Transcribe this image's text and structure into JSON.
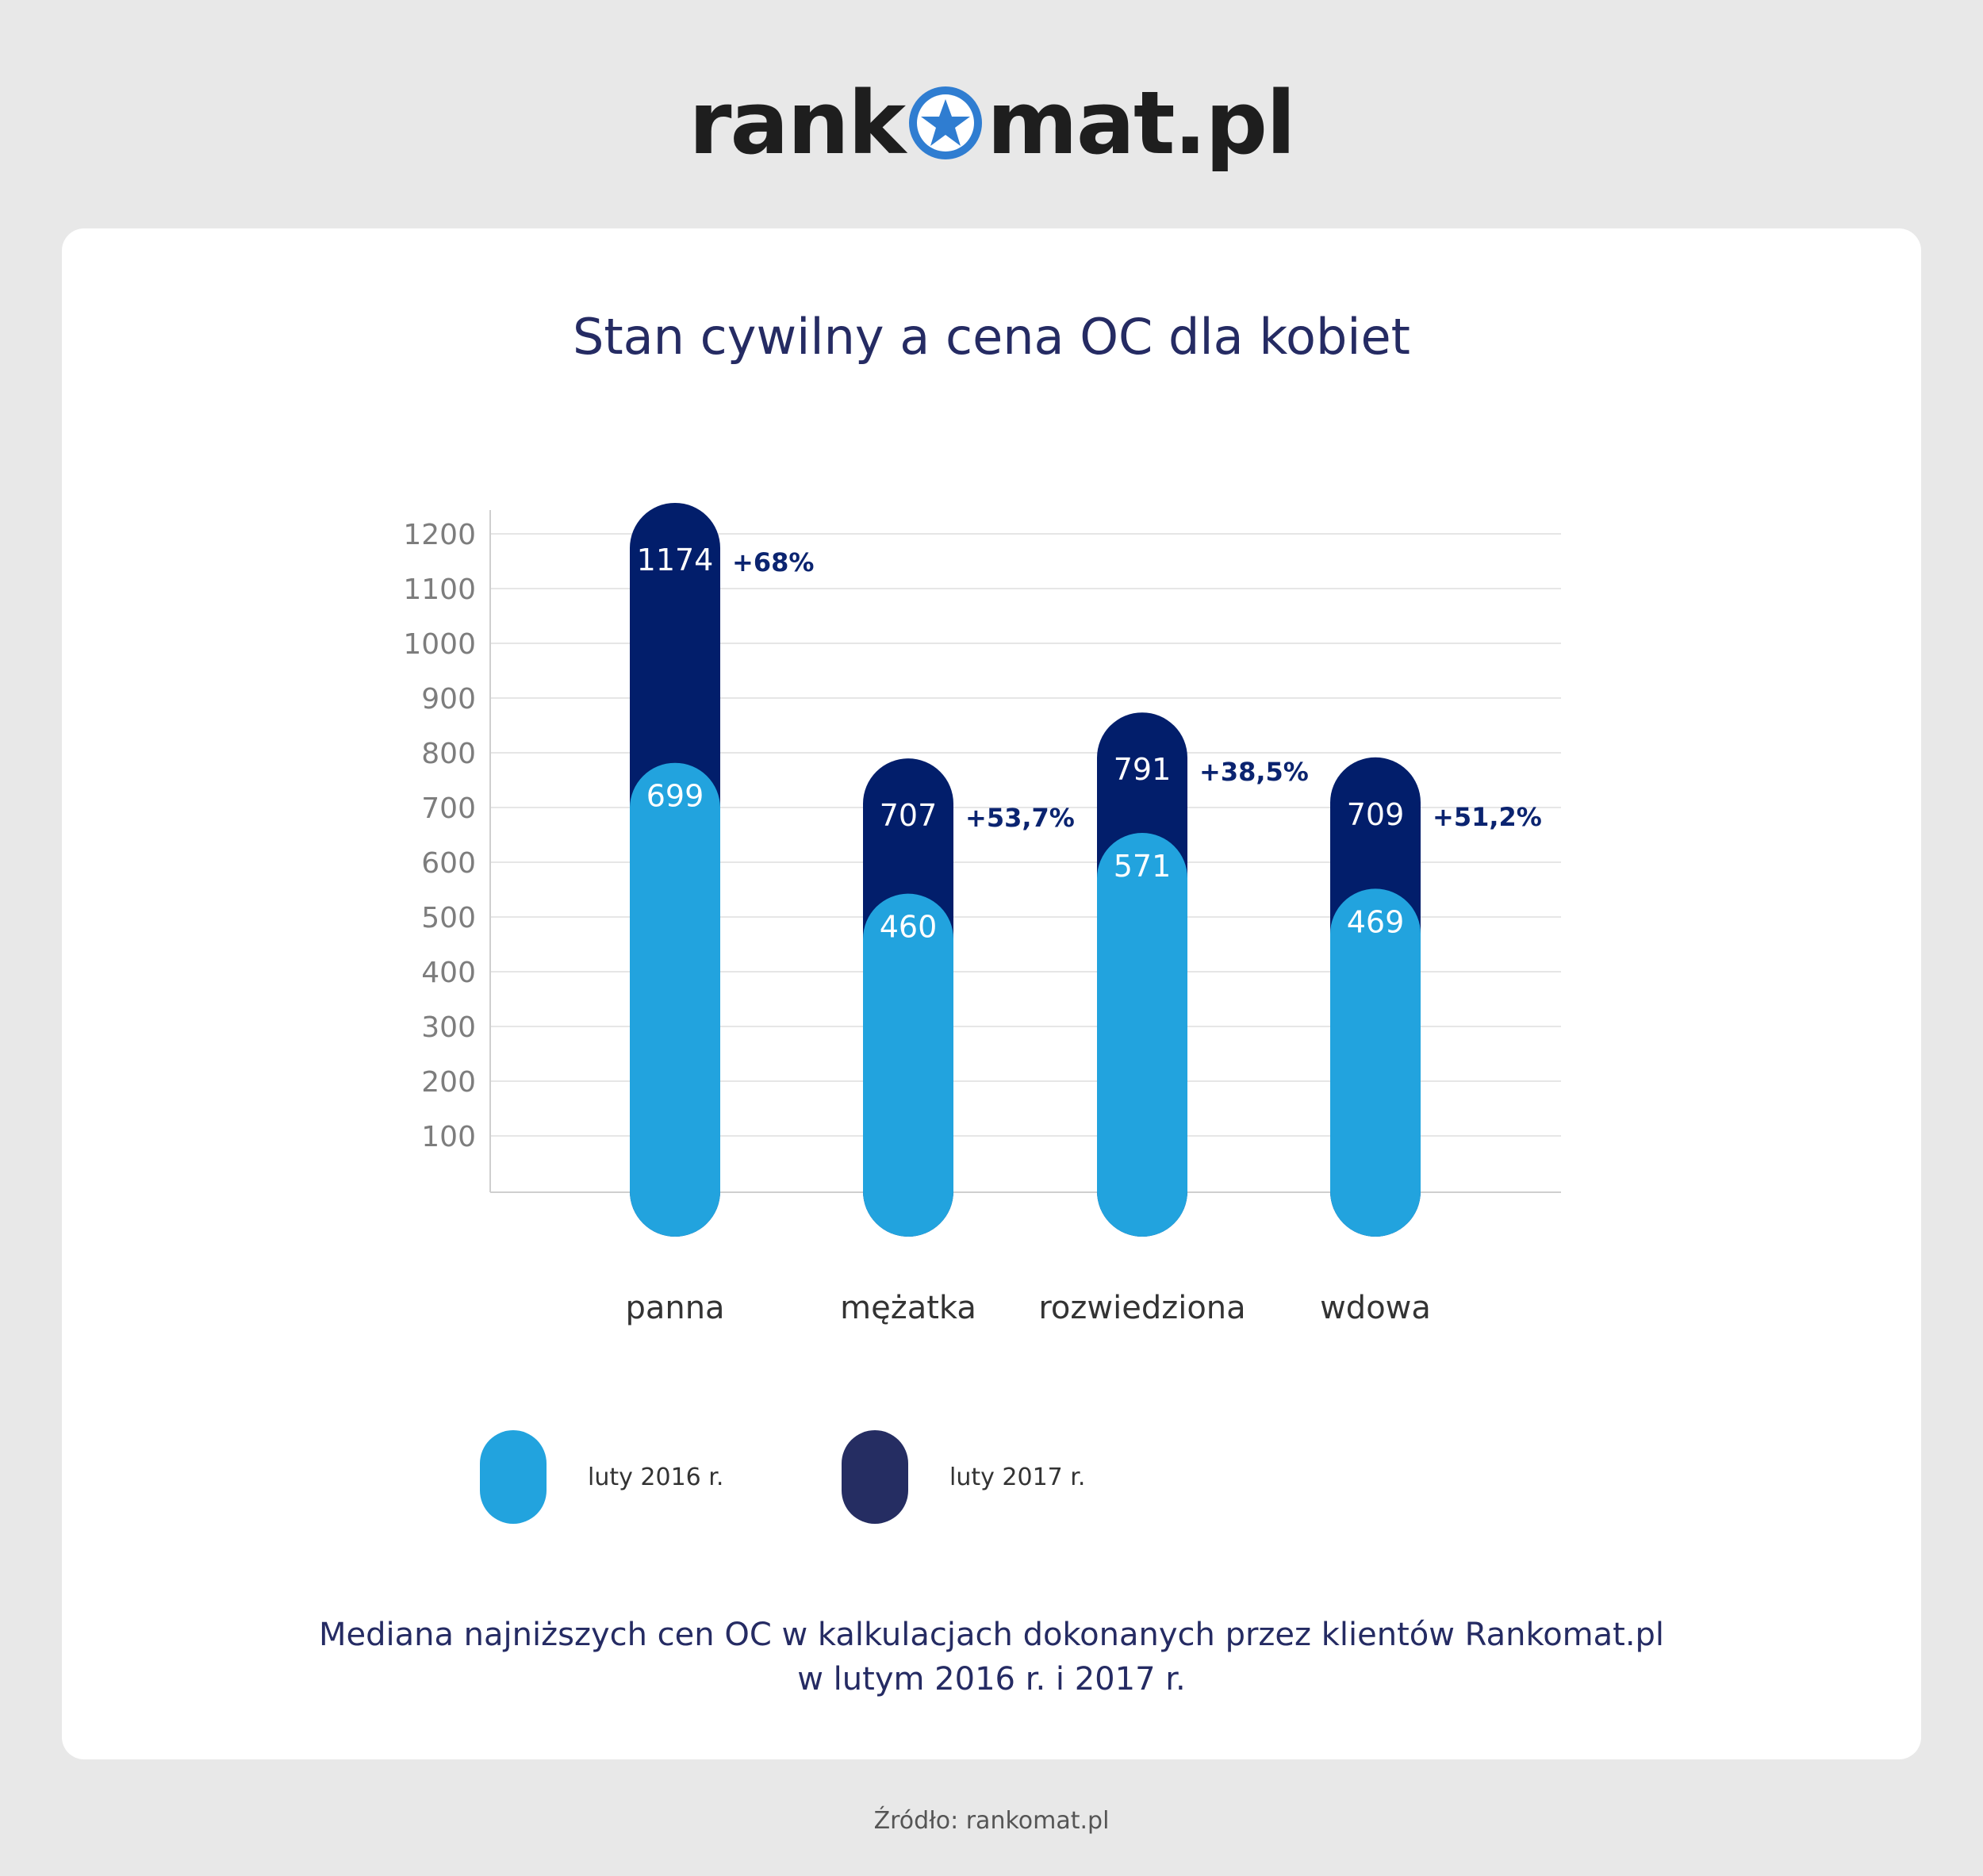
{
  "brand": {
    "logo_left": "rank",
    "logo_right": "mat.pl",
    "logo_icon": "star-circle-icon",
    "logo_icon_color": "#2f7dd1"
  },
  "chart_data": {
    "type": "bar",
    "title": "Stan cywilny a cena OC dla kobiet",
    "categories": [
      "panna",
      "mężatka",
      "rozwiedziona",
      "wdowa"
    ],
    "series": [
      {
        "name": "luty 2016 r.",
        "color": "#22a3de",
        "values": [
          699,
          460,
          571,
          469
        ]
      },
      {
        "name": "luty 2017 r.",
        "color": "#021e6b",
        "values": [
          1174,
          707,
          791,
          709
        ]
      }
    ],
    "change_labels": [
      "+68%",
      "+53,7%",
      "+38,5%",
      "+51,2%"
    ],
    "yticks": [
      100,
      200,
      300,
      400,
      500,
      600,
      700,
      800,
      900,
      1000,
      1100,
      1200
    ],
    "ylim": [
      0,
      1250
    ],
    "grid": true,
    "legend_position": "bottom",
    "legend_swatch_2017_color": "#252d62"
  },
  "caption": {
    "line1": "Mediana najniższych cen OC w kalkulacjach dokonanych przez klientów Rankomat.pl",
    "line2": "w lutym 2016 r. i  2017 r."
  },
  "source": "Źródło: rankomat.pl"
}
